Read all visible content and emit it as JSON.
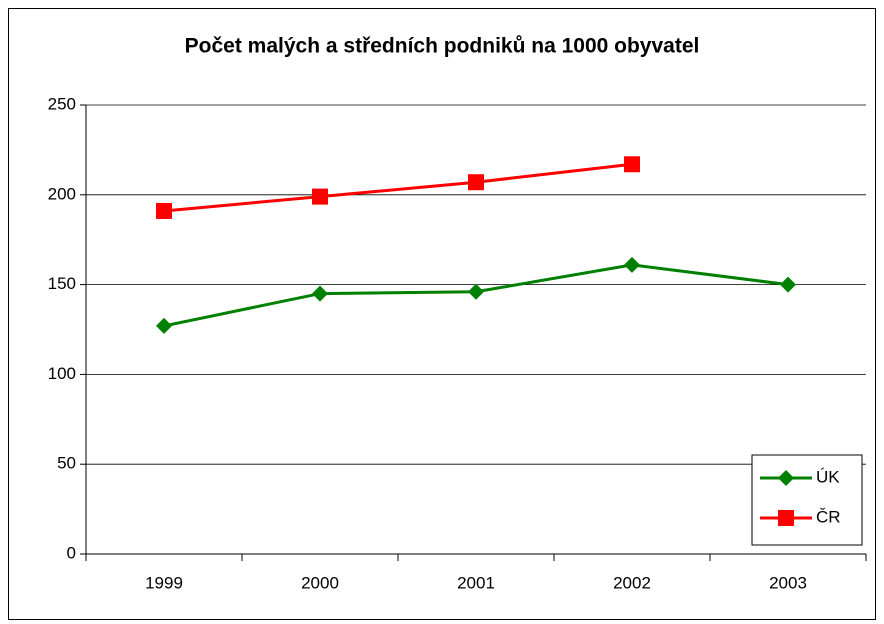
{
  "chart_data": {
    "type": "line",
    "title": "Počet malých a středních podniků na 1000 obyvatel",
    "categories": [
      "1999",
      "2000",
      "2001",
      "2002",
      "2003"
    ],
    "series": [
      {
        "name": "ÚK",
        "color": "#008000",
        "marker": "diamond",
        "values": [
          127,
          145,
          146,
          161,
          150
        ]
      },
      {
        "name": "ČR",
        "color": "#ff0000",
        "marker": "square",
        "values": [
          191,
          199,
          207,
          217,
          null
        ]
      }
    ],
    "ylim": [
      0,
      250
    ],
    "yticks": [
      0,
      50,
      100,
      150,
      200,
      250
    ],
    "grid": true,
    "legend": "lower right"
  }
}
